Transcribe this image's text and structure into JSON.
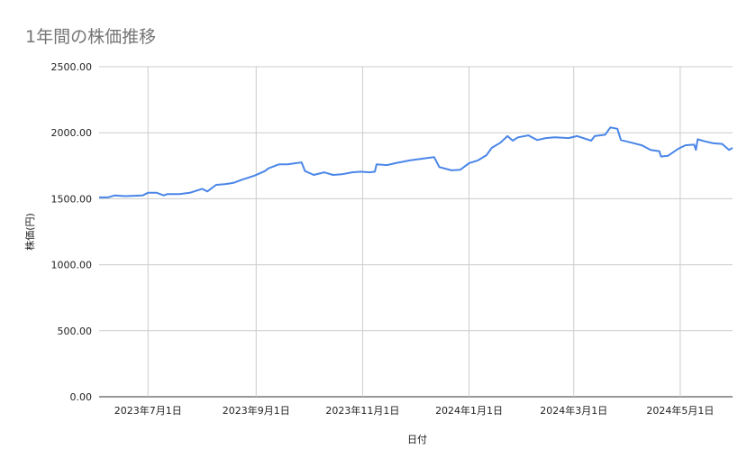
{
  "chart_data": {
    "type": "line",
    "title": "1年間の株価推移",
    "xlabel": "日付",
    "ylabel": "株価(円)",
    "ylim": [
      0,
      2500
    ],
    "xlim": [
      "2023-06-03",
      "2024-05-31"
    ],
    "grid": true,
    "legend": "none",
    "line_color": "#4a86e8",
    "y_ticks": [
      "0.00",
      "500.00",
      "1000.00",
      "1500.00",
      "2000.00",
      "2500.00"
    ],
    "x_ticks": [
      {
        "date": "2023-07-01",
        "label": "2023年7月1日"
      },
      {
        "date": "2023-09-01",
        "label": "2023年9月1日"
      },
      {
        "date": "2023-11-01",
        "label": "2023年11月1日"
      },
      {
        "date": "2024-01-01",
        "label": "2024年1月1日"
      },
      {
        "date": "2024-03-01",
        "label": "2024年3月1日"
      },
      {
        "date": "2024-05-01",
        "label": "2024年5月1日"
      }
    ],
    "series": [
      {
        "points": [
          [
            "2023-06-03",
            1510
          ],
          [
            "2023-06-08",
            1510
          ],
          [
            "2023-06-12",
            1525
          ],
          [
            "2023-06-18",
            1520
          ],
          [
            "2023-06-28",
            1525
          ],
          [
            "2023-07-01",
            1545
          ],
          [
            "2023-07-06",
            1545
          ],
          [
            "2023-07-10",
            1525
          ],
          [
            "2023-07-12",
            1535
          ],
          [
            "2023-07-19",
            1535
          ],
          [
            "2023-07-25",
            1545
          ],
          [
            "2023-08-01",
            1575
          ],
          [
            "2023-08-04",
            1555
          ],
          [
            "2023-08-09",
            1605
          ],
          [
            "2023-08-14",
            1610
          ],
          [
            "2023-08-19",
            1620
          ],
          [
            "2023-08-24",
            1645
          ],
          [
            "2023-08-31",
            1675
          ],
          [
            "2023-09-06",
            1710
          ],
          [
            "2023-09-08",
            1730
          ],
          [
            "2023-09-14",
            1760
          ],
          [
            "2023-09-19",
            1760
          ],
          [
            "2023-09-24",
            1770
          ],
          [
            "2023-09-27",
            1775
          ],
          [
            "2023-09-29",
            1710
          ],
          [
            "2023-10-04",
            1680
          ],
          [
            "2023-10-10",
            1700
          ],
          [
            "2023-10-15",
            1680
          ],
          [
            "2023-10-20",
            1685
          ],
          [
            "2023-10-26",
            1700
          ],
          [
            "2023-10-31",
            1705
          ],
          [
            "2023-11-05",
            1700
          ],
          [
            "2023-11-08",
            1705
          ],
          [
            "2023-11-09",
            1760
          ],
          [
            "2023-11-15",
            1755
          ],
          [
            "2023-11-20",
            1770
          ],
          [
            "2023-11-28",
            1790
          ],
          [
            "2023-12-06",
            1805
          ],
          [
            "2023-12-12",
            1815
          ],
          [
            "2023-12-15",
            1740
          ],
          [
            "2023-12-22",
            1715
          ],
          [
            "2023-12-27",
            1720
          ],
          [
            "2024-01-01",
            1770
          ],
          [
            "2024-01-06",
            1790
          ],
          [
            "2024-01-11",
            1830
          ],
          [
            "2024-01-14",
            1885
          ],
          [
            "2024-01-19",
            1925
          ],
          [
            "2024-01-23",
            1975
          ],
          [
            "2024-01-26",
            1940
          ],
          [
            "2024-01-29",
            1965
          ],
          [
            "2024-02-04",
            1980
          ],
          [
            "2024-02-09",
            1945
          ],
          [
            "2024-02-14",
            1960
          ],
          [
            "2024-02-19",
            1965
          ],
          [
            "2024-02-27",
            1960
          ],
          [
            "2024-03-03",
            1975
          ],
          [
            "2024-03-11",
            1940
          ],
          [
            "2024-03-13",
            1975
          ],
          [
            "2024-03-19",
            1985
          ],
          [
            "2024-03-22",
            2040
          ],
          [
            "2024-03-26",
            2030
          ],
          [
            "2024-03-28",
            1945
          ],
          [
            "2024-04-03",
            1925
          ],
          [
            "2024-04-09",
            1905
          ],
          [
            "2024-04-14",
            1870
          ],
          [
            "2024-04-19",
            1860
          ],
          [
            "2024-04-20",
            1820
          ],
          [
            "2024-04-24",
            1825
          ],
          [
            "2024-04-30",
            1880
          ],
          [
            "2024-05-04",
            1905
          ],
          [
            "2024-05-09",
            1910
          ],
          [
            "2024-05-10",
            1870
          ],
          [
            "2024-05-11",
            1950
          ],
          [
            "2024-05-15",
            1935
          ],
          [
            "2024-05-20",
            1920
          ],
          [
            "2024-05-25",
            1915
          ],
          [
            "2024-05-29",
            1870
          ],
          [
            "2024-05-31",
            1885
          ]
        ]
      }
    ]
  }
}
